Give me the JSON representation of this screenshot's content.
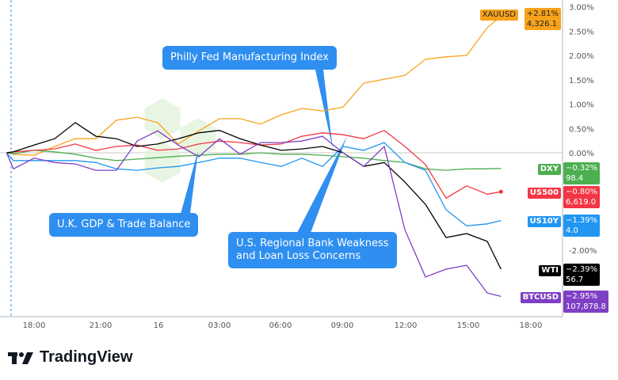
{
  "chart_data": {
    "type": "line",
    "yunit": "%",
    "ylim": [
      -3.1,
      3.05
    ],
    "y_ticks": [
      "3.00%",
      "2.50%",
      "2.00%",
      "1.50%",
      "1.00%",
      "0.50%",
      "0.00%",
      "-2.00%"
    ],
    "y_tick_values": [
      3.0,
      2.5,
      2.0,
      1.5,
      1.0,
      0.5,
      0.0,
      -2.0
    ],
    "x_ticks": [
      "18:00",
      "21:00",
      "16",
      "03:00",
      "06:00",
      "09:00",
      "12:00",
      "15:00",
      "18:00"
    ],
    "x": [
      "16:40",
      "17:00",
      "18:00",
      "19:00",
      "20:00",
      "21:00",
      "22:00",
      "23:00",
      "00:00",
      "01:00",
      "02:00",
      "03:00",
      "04:00",
      "05:00",
      "06:00",
      "07:00",
      "08:00",
      "09:00",
      "10:00",
      "11:00",
      "12:00",
      "13:00",
      "14:00",
      "15:00",
      "16:00",
      "16:40"
    ],
    "grid": false,
    "series": [
      {
        "name": "XAUUSD",
        "color": "#f7a21b",
        "change": "+2.81%",
        "price": "4,326.1",
        "values": [
          0,
          -0.03,
          -0.05,
          0.13,
          0.29,
          0.29,
          0.67,
          0.73,
          0.62,
          0.18,
          0.45,
          0.7,
          0.7,
          0.59,
          0.78,
          0.91,
          0.86,
          0.94,
          1.43,
          1.51,
          1.59,
          1.92,
          1.97,
          2.0,
          2.57,
          2.81
        ]
      },
      {
        "name": "DXY",
        "color": "#4caf50",
        "change": "−0.32%",
        "price": "98.4",
        "values": [
          0,
          -0.02,
          0.05,
          0.02,
          -0.03,
          -0.11,
          -0.16,
          -0.13,
          -0.1,
          -0.07,
          -0.05,
          -0.03,
          -0.03,
          0,
          -0.03,
          -0.03,
          -0.05,
          -0.08,
          -0.11,
          -0.16,
          -0.2,
          -0.33,
          -0.36,
          -0.33,
          -0.33,
          -0.32
        ]
      },
      {
        "name": "US500",
        "color": "#f23645",
        "change": "−0.80%",
        "price": "6,619.0",
        "values": [
          0,
          0.02,
          0.05,
          0.08,
          0.18,
          0.05,
          0.13,
          0.16,
          0.05,
          0.08,
          0.18,
          0.24,
          0.21,
          0.16,
          0.18,
          0.34,
          0.41,
          0.37,
          0.29,
          0.46,
          0.13,
          -0.24,
          -0.93,
          -0.68,
          -0.85,
          -0.8
        ]
      },
      {
        "name": "US10Y",
        "color": "#2196f3",
        "change": "−1.39%",
        "price": "4.0",
        "values": [
          0,
          -0.16,
          -0.16,
          -0.16,
          -0.16,
          -0.2,
          -0.33,
          -0.36,
          -0.31,
          -0.28,
          -0.2,
          -0.11,
          -0.11,
          -0.2,
          -0.28,
          -0.11,
          -0.28,
          0.13,
          0.05,
          0.21,
          -0.2,
          -0.36,
          -1.17,
          -1.5,
          -1.46,
          -1.39
        ]
      },
      {
        "name": "WTI",
        "color": "#000000",
        "change": "−2.39%",
        "price": "56.7",
        "values": [
          0,
          0.02,
          0.16,
          0.29,
          0.62,
          0.34,
          0.29,
          0.13,
          0.18,
          0.29,
          0.41,
          0.46,
          0.29,
          0.16,
          0.05,
          0.08,
          0.13,
          0,
          -0.28,
          -0.2,
          -0.6,
          -1.06,
          -1.74,
          -1.66,
          -1.82,
          -2.39
        ]
      },
      {
        "name": "BTCUSD",
        "color": "#7e3fc4",
        "change": "−2.95%",
        "price": "107,878.8",
        "values": [
          0,
          -0.33,
          -0.11,
          -0.2,
          -0.23,
          -0.36,
          -0.36,
          0.24,
          0.45,
          0.16,
          -0.08,
          0.29,
          -0.03,
          0.21,
          0.21,
          0.24,
          0.34,
          0,
          -0.28,
          0.13,
          -1.58,
          -2.55,
          -2.39,
          -2.31,
          -2.88,
          -2.95
        ]
      }
    ],
    "annotations": [
      {
        "text": "Philly Fed Manufacturing Index"
      },
      {
        "text": "U.K. GDP & Trade Balance"
      },
      {
        "line1": "U.S. Regional Bank Weakness",
        "line2": "and Loan Loss Concerns"
      }
    ]
  },
  "branding": {
    "logo_text": "TradingView"
  }
}
